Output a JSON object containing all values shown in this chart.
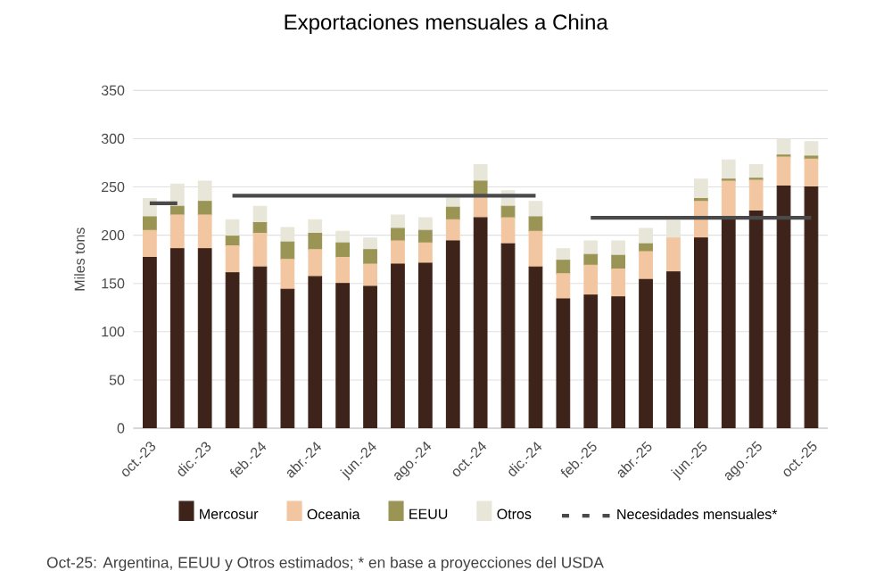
{
  "chart_data": {
    "type": "bar",
    "title": "Exportaciones mensuales a China",
    "ylabel": "Miles tons",
    "stacked": true,
    "grid": "y",
    "legend": "bottom",
    "categories": [
      "oct.-23",
      null,
      "dic.-23",
      null,
      "feb.-24",
      null,
      "abr.-24",
      null,
      "jun.-24",
      null,
      "ago.-24",
      null,
      "oct.-24",
      null,
      "dic.-24",
      null,
      "feb.-25",
      null,
      "abr.-25",
      null,
      "jun.-25",
      null,
      "ago.-25",
      null,
      "oct.-25"
    ],
    "ylim": [
      0,
      350
    ],
    "yticks": [
      0,
      50,
      100,
      150,
      200,
      250,
      300,
      350
    ],
    "series": [
      {
        "name": "Mercosur",
        "color": "#3d2319",
        "values": [
          177,
          186,
          186,
          161,
          167,
          144,
          157,
          150,
          147,
          170,
          171,
          194,
          218,
          191,
          167,
          134,
          138,
          136,
          154,
          162,
          197,
          217,
          225,
          251,
          250
        ]
      },
      {
        "name": "Oceania",
        "color": "#f2c6a0",
        "values": [
          28,
          35,
          35,
          28,
          35,
          31,
          28,
          27,
          23,
          24,
          21,
          22,
          23,
          27,
          37,
          26,
          31,
          29,
          29,
          35,
          38,
          39,
          32,
          30,
          29
        ]
      },
      {
        "name": "EEUU",
        "color": "#9a9455",
        "values": [
          14,
          9,
          14,
          10,
          11,
          18,
          17,
          15,
          15,
          13,
          13,
          13,
          15,
          12,
          15,
          14,
          11,
          14,
          8,
          0,
          3,
          2,
          2,
          2,
          3
        ]
      },
      {
        "name": "Otros",
        "color": "#e8e6d8",
        "values": [
          19,
          23,
          21,
          17,
          17,
          15,
          14,
          12,
          12,
          14,
          13,
          13,
          17,
          16,
          16,
          12,
          14,
          15,
          16,
          18,
          20,
          20,
          14,
          16,
          15
        ]
      },
      {
        "name": "Necesidades mensuales*",
        "type": "line",
        "color": "#4a4a4a",
        "values": [
          233,
          233,
          null,
          241,
          241,
          241,
          241,
          241,
          241,
          241,
          241,
          241,
          241,
          241,
          241,
          null,
          218,
          218,
          218,
          218,
          218,
          218,
          218,
          218,
          218
        ]
      }
    ],
    "annotations": [
      "Oct-25: Argentina, EEUU y Otros estimados; * en base a proyecciones del USDA"
    ]
  }
}
